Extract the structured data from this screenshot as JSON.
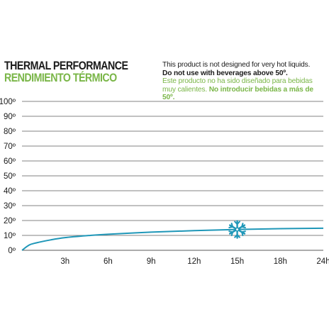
{
  "header": {
    "title_en": "THERMAL PERFORMANCE",
    "title_es": "RENDIMIENTO TÉRMICO"
  },
  "notice": {
    "en_line": "This product is not designed for very hot liquids.",
    "en_bold": "Do not use with beverages above 50º.",
    "es_line": "Este producto no ha sido diseñado para bebidas muy calientes.",
    "es_bold": "No introducir bebidas a más de 50º."
  },
  "colors": {
    "accent_green": "#7ab648",
    "curve": "#1f97b8",
    "grid": "#5a5a5a",
    "text": "#1a1a1a"
  },
  "icons": {
    "marker": "snowflake-icon"
  },
  "chart_data": {
    "type": "line",
    "title": "",
    "xlabel": "",
    "ylabel": "",
    "x_tick_labels": [
      "3h",
      "6h",
      "9h",
      "12h",
      "15h",
      "18h",
      "24h"
    ],
    "y_tick_labels": [
      "0º",
      "10º",
      "20º",
      "30º",
      "40º",
      "50º",
      "60º",
      "70º",
      "80º",
      "90º",
      "100º"
    ],
    "ylim": [
      0,
      100
    ],
    "xlim": [
      0,
      21
    ],
    "grid": "horizontal",
    "series": [
      {
        "color": "#1f97b8",
        "x": [
          0,
          0.5,
          1,
          2,
          3,
          4.5,
          6,
          9,
          12,
          15,
          18,
          21
        ],
        "y": [
          0,
          3.5,
          5,
          7,
          8.5,
          9.8,
          10.8,
          12.2,
          13.2,
          14,
          14.5,
          14.8
        ]
      }
    ],
    "marker": {
      "icon": "snowflake",
      "x": 15,
      "y": 14
    }
  }
}
